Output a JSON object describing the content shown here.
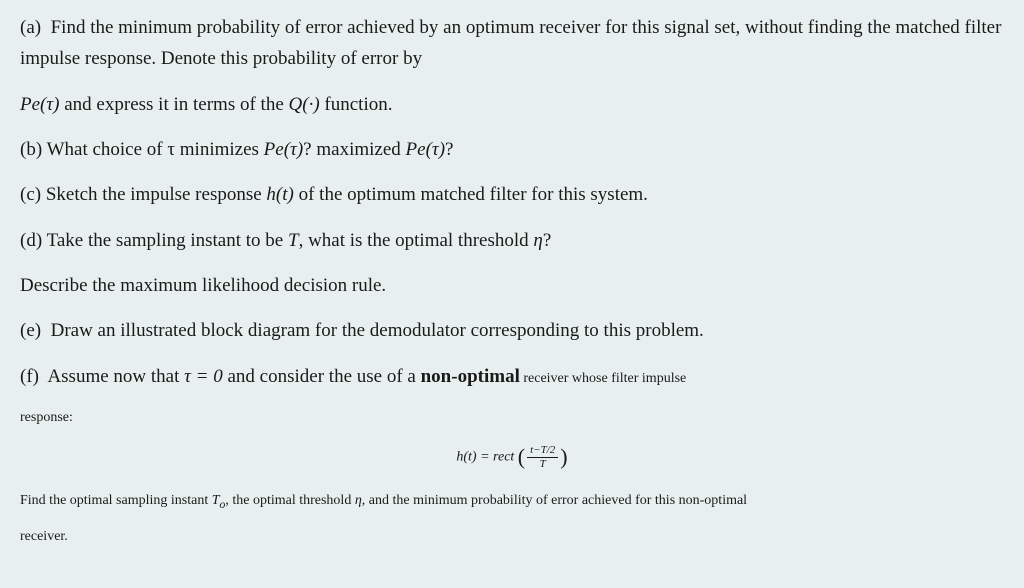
{
  "background_color": "#e8f0ef",
  "text_color": "#1a1a1a",
  "font_family": "Georgia, serif",
  "base_fontsize_pt": 19,
  "small_fontsize_pt": 14,
  "parts": {
    "a": {
      "label": "(a)",
      "text": "Find the minimum probability of error achieved by an optimum receiver for this signal set, without finding the matched filter impulse response. Denote this probability of error by",
      "text2_prefix": "Pe(τ)",
      "text2_mid": " and express it in terms of the ",
      "text2_q": "Q(·)",
      "text2_suffix": " function."
    },
    "b": {
      "label": "(b)",
      "text_prefix": "What choice of τ minimizes ",
      "pe1": "Pe(τ)",
      "mid": "? maximized ",
      "pe2": "Pe(τ)",
      "suffix": "?"
    },
    "c": {
      "label": "(c)",
      "text_prefix": "Sketch the impulse response ",
      "ht": "h(t)",
      "text_suffix": " of the optimum matched filter for this system."
    },
    "d": {
      "label": "(d)",
      "text_prefix": "Take the sampling instant to be ",
      "T": "T",
      "mid": ", what is the optimal threshold ",
      "eta": "η",
      "suffix": "?"
    },
    "d2": {
      "text": "Describe the maximum likelihood decision rule."
    },
    "e": {
      "label": "(e)",
      "text": "Draw an illustrated block diagram for the demodulator corresponding to this problem."
    },
    "f": {
      "label": "(f)",
      "text_prefix": "Assume now that ",
      "tau_eq": "τ = 0",
      "mid": " and consider the use of a ",
      "bold": "non-optimal",
      "tail": " receiver whose filter impulse"
    },
    "f_response": {
      "text": "response:"
    },
    "formula": {
      "lhs": "h(t)",
      "eq": " = ",
      "fn": "rect ",
      "num": "t−T/2",
      "den": "T"
    },
    "f2": {
      "prefix": "Find the optimal sampling instant ",
      "To": "T",
      "To_sub": "o",
      "mid1": ", the optimal threshold ",
      "eta": "η",
      "mid2": ", and the minimum probability of error achieved for this non-optimal"
    },
    "f3": {
      "text": "receiver."
    }
  }
}
